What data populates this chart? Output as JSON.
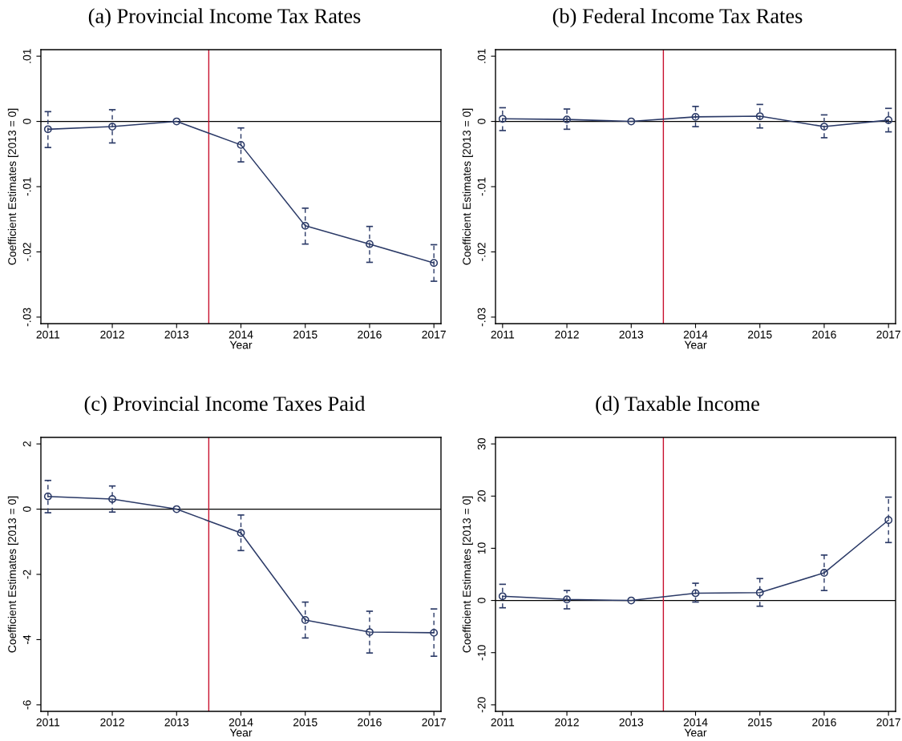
{
  "chart_data": [
    {
      "type": "line",
      "title": "(a) Provincial Income Tax Rates",
      "xlabel": "Year",
      "ylabel": "Coefficient Estimates [2013 = 0]",
      "x": [
        2011,
        2012,
        2013,
        2014,
        2015,
        2016,
        2017
      ],
      "series": [
        {
          "color": "#2b3a67",
          "values": [
            -0.0012,
            -0.0008,
            0,
            -0.0036,
            -0.016,
            -0.0188,
            -0.0217
          ],
          "errors": [
            [
              -0.004,
              0.0015
            ],
            [
              -0.0033,
              0.0018
            ],
            null,
            [
              -0.0062,
              -0.001
            ],
            [
              -0.0188,
              -0.0133
            ],
            [
              -0.0216,
              -0.0161
            ],
            [
              -0.0245,
              -0.0189
            ]
          ]
        }
      ],
      "xlim": [
        2010.89,
        2017.11
      ],
      "ylim": [
        -0.031,
        0.011
      ],
      "xticks": [
        2011,
        2012,
        2013,
        2014,
        2015,
        2016,
        2017
      ],
      "yticks": [
        {
          "value": -0.03,
          "label": "-.03"
        },
        {
          "value": -0.02,
          "label": "-.02"
        },
        {
          "value": -0.01,
          "label": "-.01"
        },
        0,
        {
          "value": 0.01,
          "label": ".01"
        }
      ],
      "ref_lines": [
        {
          "axis": "y",
          "value": 0,
          "color": "#000000"
        },
        {
          "axis": "x",
          "value": 2013.5,
          "color": "#c8102e"
        }
      ],
      "marker": "circle",
      "line_style": "solid"
    },
    {
      "type": "line",
      "title": "(b) Federal Income Tax Rates",
      "xlabel": "Year",
      "ylabel": "Coefficient Estimates [2013 = 0]",
      "x": [
        2011,
        2012,
        2013,
        2014,
        2015,
        2016,
        2017
      ],
      "series": [
        {
          "color": "#2b3a67",
          "values": [
            0.0004,
            0.0003,
            0,
            0.0007,
            0.0008,
            -0.0008,
            0.0002
          ],
          "errors": [
            [
              -0.0014,
              0.0021
            ],
            [
              -0.0012,
              0.0019
            ],
            null,
            [
              -0.0008,
              0.0023
            ],
            [
              -0.001,
              0.0026
            ],
            [
              -0.0025,
              0.001
            ],
            [
              -0.0016,
              0.002
            ]
          ]
        }
      ],
      "xlim": [
        2010.89,
        2017.11
      ],
      "ylim": [
        -0.031,
        0.011
      ],
      "xticks": [
        2011,
        2012,
        2013,
        2014,
        2015,
        2016,
        2017
      ],
      "yticks": [
        {
          "value": -0.03,
          "label": "-.03"
        },
        {
          "value": -0.02,
          "label": "-.02"
        },
        {
          "value": -0.01,
          "label": "-.01"
        },
        0,
        {
          "value": 0.01,
          "label": ".01"
        }
      ],
      "ref_lines": [
        {
          "axis": "y",
          "value": 0,
          "color": "#000000"
        },
        {
          "axis": "x",
          "value": 2013.5,
          "color": "#c8102e"
        }
      ],
      "marker": "circle",
      "line_style": "solid"
    },
    {
      "type": "line",
      "title": "(c) Provincial Income Taxes Paid",
      "xlabel": "Year",
      "ylabel": "Coefficient Estimates [2013 = 0]",
      "x": [
        2011,
        2012,
        2013,
        2014,
        2015,
        2016,
        2017
      ],
      "series": [
        {
          "color": "#2b3a67",
          "values": [
            0.39,
            0.31,
            0,
            -0.73,
            -3.4,
            -3.77,
            -3.79
          ],
          "errors": [
            [
              -0.11,
              0.88
            ],
            [
              -0.09,
              0.71
            ],
            null,
            [
              -1.27,
              -0.18
            ],
            [
              -3.95,
              -2.85
            ],
            [
              -4.41,
              -3.13
            ],
            [
              -4.51,
              -3.06
            ]
          ]
        }
      ],
      "xlim": [
        2010.89,
        2017.11
      ],
      "ylim": [
        -6.2,
        2.2
      ],
      "xticks": [
        2011,
        2012,
        2013,
        2014,
        2015,
        2016,
        2017
      ],
      "yticks": [
        -6,
        -4,
        -2,
        0,
        2
      ],
      "ref_lines": [
        {
          "axis": "y",
          "value": 0,
          "color": "#000000"
        },
        {
          "axis": "x",
          "value": 2013.5,
          "color": "#c8102e"
        }
      ],
      "marker": "circle",
      "line_style": "solid"
    },
    {
      "type": "line",
      "title": "(d) Taxable Income",
      "xlabel": "Year",
      "ylabel": "Coefficient Estimates [2013 = 0]",
      "x": [
        2011,
        2012,
        2013,
        2014,
        2015,
        2016,
        2017
      ],
      "series": [
        {
          "color": "#2b3a67",
          "values": [
            0.8,
            0.2,
            0,
            1.4,
            1.5,
            5.3,
            15.4
          ],
          "errors": [
            [
              -1.4,
              3.1
            ],
            [
              -1.6,
              1.9
            ],
            null,
            [
              -0.3,
              3.3
            ],
            [
              -1.1,
              4.2
            ],
            [
              1.9,
              8.7
            ],
            [
              11.1,
              19.8
            ]
          ]
        }
      ],
      "xlim": [
        2010.89,
        2017.11
      ],
      "ylim": [
        -21.25,
        31.25
      ],
      "xticks": [
        2011,
        2012,
        2013,
        2014,
        2015,
        2016,
        2017
      ],
      "yticks": [
        -20,
        -10,
        0,
        10,
        20,
        30
      ],
      "ref_lines": [
        {
          "axis": "y",
          "value": 0,
          "color": "#000000"
        },
        {
          "axis": "x",
          "value": 2013.5,
          "color": "#c8102e"
        }
      ],
      "marker": "circle",
      "line_style": "solid"
    }
  ]
}
